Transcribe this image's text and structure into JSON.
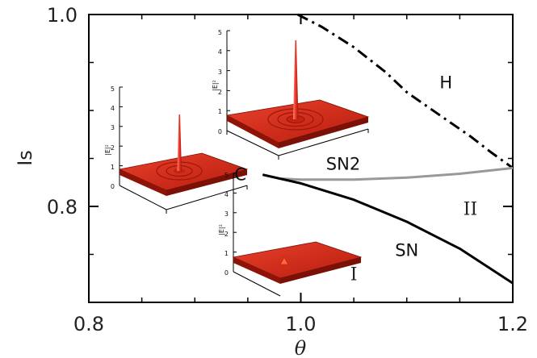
{
  "chart_data": {
    "type": "line",
    "xlabel": "θ",
    "ylabel": "Is",
    "xlim": [
      0.8,
      1.2
    ],
    "ylim": [
      0.7,
      1.0
    ],
    "x_ticks": [
      {
        "value": 0.8,
        "label": "0.8"
      },
      {
        "value": 1.0,
        "label": "1.0"
      },
      {
        "value": 1.2,
        "label": "1.2"
      }
    ],
    "y_ticks": [
      {
        "value": 0.8,
        "label": "0.8"
      },
      {
        "value": 1.0,
        "label": "1.0"
      }
    ],
    "x_minor_ticks": [
      0.85,
      0.9,
      0.95,
      1.05,
      1.1,
      1.15
    ],
    "y_minor_ticks": [
      0.75,
      0.85,
      0.9,
      0.95
    ],
    "series": [
      {
        "name": "H",
        "style": "dash-dot",
        "color": "#000000",
        "x": [
          0.997,
          1.02,
          1.05,
          1.08,
          1.1,
          1.13,
          1.16,
          1.18,
          1.2
        ],
        "y": [
          1.0,
          0.987,
          0.966,
          0.94,
          0.919,
          0.896,
          0.873,
          0.856,
          0.84
        ]
      },
      {
        "name": "SN2",
        "style": "solid",
        "color": "#999999",
        "x": [
          0.964,
          0.98,
          1.0,
          1.05,
          1.1,
          1.15,
          1.2
        ],
        "y": [
          0.833,
          0.829,
          0.828,
          0.828,
          0.83,
          0.834,
          0.84
        ]
      },
      {
        "name": "SN",
        "style": "solid",
        "color": "#000000",
        "x": [
          0.964,
          1.0,
          1.05,
          1.1,
          1.15,
          1.2
        ],
        "y": [
          0.833,
          0.824,
          0.807,
          0.784,
          0.756,
          0.72
        ]
      }
    ],
    "annotations": [
      {
        "text": "H",
        "x": 1.137,
        "y": 0.93
      },
      {
        "text": "SN2",
        "x": 1.04,
        "y": 0.845
      },
      {
        "text": "SN",
        "x": 1.1,
        "y": 0.755
      },
      {
        "text": "C",
        "x": 0.943,
        "y": 0.834
      },
      {
        "text": "I",
        "x": 1.05,
        "y": 0.73
      },
      {
        "text": "II",
        "x": 1.16,
        "y": 0.798
      }
    ],
    "insets": [
      {
        "ylabel": "|E|²",
        "zticks": [
          "0",
          "1",
          "2",
          "3",
          "4",
          "5"
        ],
        "peak": "tall narrow"
      },
      {
        "ylabel": "|E|²",
        "zticks": [
          "0",
          "1",
          "2",
          "3",
          "4",
          "5"
        ],
        "peak": "medium narrow"
      },
      {
        "ylabel": "|E|²",
        "zticks": [
          "0",
          "1",
          "2",
          "3",
          "4",
          "5"
        ],
        "peak": "small"
      }
    ],
    "colors": {
      "surface": "#d42a1a",
      "surface_dark": "#a81a0c",
      "surface_light": "#ec4a33",
      "peak": "#ff5c40"
    }
  }
}
